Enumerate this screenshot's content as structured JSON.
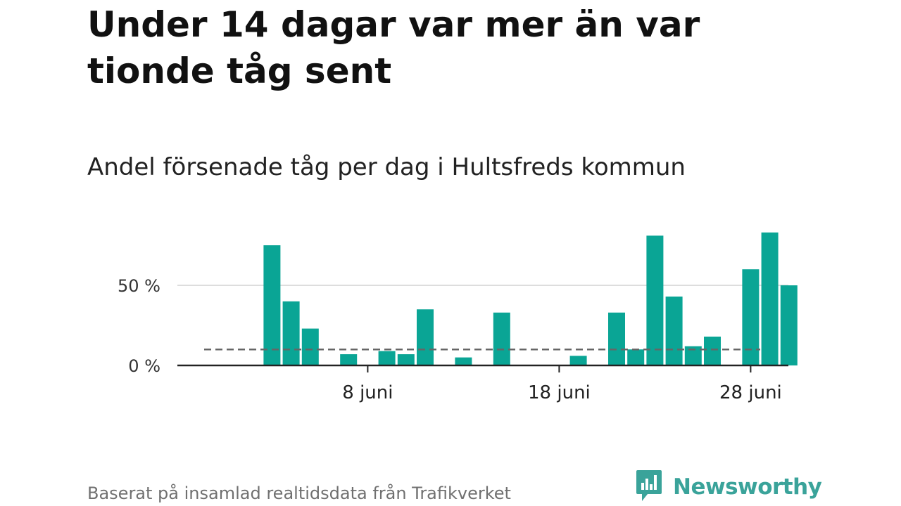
{
  "title": "Under 14 dagar var mer än var tionde tåg sent",
  "subtitle": "Andel försenade tåg per dag i Hultsfreds kommun",
  "source": "Baserat på insamlad realtidsdata från Trafikverket",
  "brand": {
    "name": "Newsworthy",
    "icon": "newsworthy-logo-icon",
    "color": "#3aa39a"
  },
  "colors": {
    "bar": "#0aa595",
    "reference_line": "#666666",
    "grid": "#dddddd",
    "axis": "#222222"
  },
  "chart_data": {
    "type": "bar",
    "x": [
      "1 juni",
      "2 juni",
      "3 juni",
      "4 juni",
      "5 juni",
      "6 juni",
      "7 juni",
      "8 juni",
      "9 juni",
      "10 juni",
      "11 juni",
      "12 juni",
      "13 juni",
      "14 juni",
      "15 juni",
      "16 juni",
      "17 juni",
      "18 juni",
      "19 juni",
      "20 juni",
      "21 juni",
      "22 juni",
      "23 juni",
      "24 juni",
      "25 juni",
      "26 juni",
      "27 juni",
      "28 juni",
      "29 juni",
      "30 juni"
    ],
    "values": [
      null,
      null,
      75,
      40,
      23,
      null,
      7,
      null,
      9,
      7,
      35,
      null,
      5,
      null,
      33,
      null,
      null,
      null,
      6,
      null,
      33,
      10,
      81,
      43,
      12,
      18,
      null,
      60,
      83,
      50
    ],
    "x_ticks": [
      "8 juni",
      "18 juni",
      "28 juni"
    ],
    "y_ticks": [
      {
        "value": 0,
        "label": "0 %"
      },
      {
        "value": 50,
        "label": "50 %"
      }
    ],
    "reference_line": {
      "value": 10,
      "style": "dashed"
    },
    "ylim": [
      0,
      90
    ],
    "unit": "%",
    "grid": true
  }
}
